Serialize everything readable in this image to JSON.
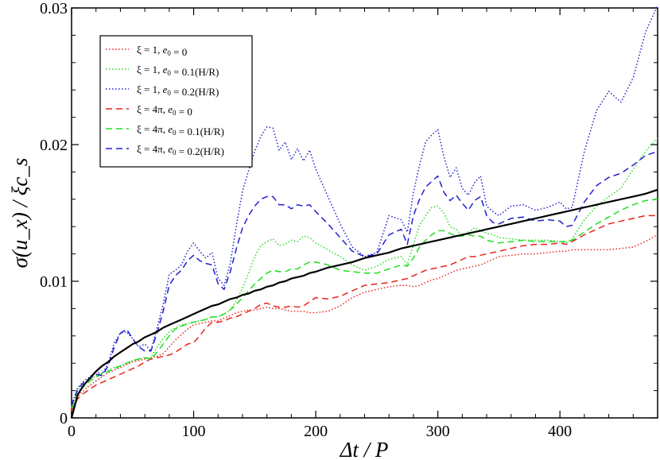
{
  "chart_data": {
    "type": "line",
    "xlabel": "Δt / P",
    "ylabel": "σ(u_x) / ξc_s",
    "xlim": [
      0,
      480
    ],
    "ylim": [
      0,
      0.03
    ],
    "x_ticks": [
      0,
      100,
      200,
      300,
      400
    ],
    "x_tick_labels": [
      "0",
      "100",
      "200",
      "300",
      "400"
    ],
    "y_ticks": [
      0,
      0.01,
      0.02,
      0.03
    ],
    "y_tick_labels": [
      "0",
      "0.01",
      "0.02",
      "0.03"
    ],
    "legend_position": "top-left",
    "x": [
      0,
      5,
      10,
      15,
      20,
      25,
      30,
      35,
      40,
      45,
      50,
      55,
      60,
      65,
      70,
      75,
      80,
      85,
      90,
      95,
      100,
      105,
      110,
      115,
      120,
      125,
      130,
      135,
      140,
      145,
      150,
      155,
      160,
      165,
      170,
      175,
      180,
      185,
      190,
      195,
      200,
      210,
      220,
      230,
      240,
      250,
      260,
      270,
      275,
      280,
      285,
      290,
      295,
      300,
      305,
      310,
      315,
      320,
      325,
      330,
      335,
      340,
      345,
      350,
      360,
      370,
      380,
      390,
      400,
      405,
      410,
      420,
      430,
      440,
      450,
      460,
      470,
      480
    ],
    "series": [
      {
        "name": "ξ = 1, e0 = 0",
        "line_style": "dotted",
        "color": "#e8231c",
        "legend": {
          "xi": "1",
          "e0": "0"
        },
        "values": [
          0.0006,
          0.0016,
          0.002,
          0.0024,
          0.0027,
          0.003,
          0.0033,
          0.0035,
          0.0037,
          0.0039,
          0.0041,
          0.0042,
          0.0043,
          0.0044,
          0.0045,
          0.0047,
          0.0052,
          0.0057,
          0.0061,
          0.0065,
          0.0068,
          0.0069,
          0.007,
          0.0071,
          0.0071,
          0.0073,
          0.0075,
          0.0077,
          0.0078,
          0.0079,
          0.0079,
          0.008,
          0.0081,
          0.008,
          0.008,
          0.0079,
          0.0078,
          0.0078,
          0.0078,
          0.0077,
          0.0077,
          0.0078,
          0.0082,
          0.0088,
          0.0092,
          0.0094,
          0.0096,
          0.0097,
          0.0097,
          0.0096,
          0.0097,
          0.0099,
          0.0101,
          0.0102,
          0.0104,
          0.0106,
          0.0108,
          0.0109,
          0.011,
          0.0111,
          0.0112,
          0.0114,
          0.0116,
          0.0118,
          0.0119,
          0.012,
          0.012,
          0.0121,
          0.0122,
          0.0122,
          0.0123,
          0.0123,
          0.0123,
          0.0123,
          0.0124,
          0.0125,
          0.0129,
          0.0134
        ]
      },
      {
        "name": "ξ = 1, e0 = 0.1(H/R)",
        "line_style": "dotted",
        "color": "#22dd22",
        "legend": {
          "xi": "1",
          "e0": "0.1(H/R)"
        },
        "values": [
          0.0008,
          0.002,
          0.0025,
          0.0028,
          0.0031,
          0.0033,
          0.0035,
          0.0037,
          0.0038,
          0.004,
          0.0042,
          0.0043,
          0.0044,
          0.0044,
          0.0052,
          0.0058,
          0.0063,
          0.0066,
          0.0068,
          0.0069,
          0.007,
          0.0071,
          0.0072,
          0.0074,
          0.0074,
          0.0076,
          0.0079,
          0.0086,
          0.0095,
          0.0106,
          0.0118,
          0.0126,
          0.0129,
          0.0131,
          0.0126,
          0.0127,
          0.013,
          0.0129,
          0.0133,
          0.0132,
          0.0128,
          0.0123,
          0.0118,
          0.0112,
          0.0108,
          0.0111,
          0.0116,
          0.0118,
          0.0112,
          0.0127,
          0.0141,
          0.0148,
          0.0154,
          0.0155,
          0.015,
          0.014,
          0.0138,
          0.0133,
          0.0136,
          0.0139,
          0.0137,
          0.0135,
          0.0134,
          0.0132,
          0.0131,
          0.013,
          0.013,
          0.013,
          0.0129,
          0.0128,
          0.0131,
          0.0145,
          0.0155,
          0.0162,
          0.0168,
          0.0182,
          0.0195,
          0.0205
        ]
      },
      {
        "name": "ξ = 1, e0 = 0.2(H/R)",
        "line_style": "dotted",
        "color": "#2020d0",
        "legend": {
          "xi": "1",
          "e0": "0.2(H/R)"
        },
        "values": [
          0.001,
          0.0022,
          0.0027,
          0.003,
          0.0034,
          0.0032,
          0.004,
          0.0055,
          0.0062,
          0.0063,
          0.0058,
          0.0052,
          0.0054,
          0.0049,
          0.0066,
          0.0083,
          0.0105,
          0.0108,
          0.0112,
          0.0122,
          0.0128,
          0.0122,
          0.0117,
          0.0121,
          0.0102,
          0.0097,
          0.0113,
          0.0141,
          0.0166,
          0.0181,
          0.0195,
          0.0206,
          0.0213,
          0.0212,
          0.0196,
          0.0202,
          0.0189,
          0.0197,
          0.0188,
          0.0196,
          0.0182,
          0.0162,
          0.0142,
          0.0125,
          0.0118,
          0.0121,
          0.0148,
          0.0145,
          0.0136,
          0.0165,
          0.0185,
          0.0202,
          0.0207,
          0.0211,
          0.0191,
          0.0176,
          0.0183,
          0.0168,
          0.0163,
          0.0172,
          0.0177,
          0.0155,
          0.0151,
          0.0148,
          0.0155,
          0.0156,
          0.0152,
          0.0154,
          0.0158,
          0.0153,
          0.0154,
          0.0195,
          0.0225,
          0.0239,
          0.0231,
          0.0249,
          0.0282,
          0.0302
        ]
      },
      {
        "name": "ξ = 4π, e0 = 0",
        "line_style": "dashed",
        "color": "#e8231c",
        "legend": {
          "xi": "4π",
          "e0": "0"
        },
        "values": [
          0.0005,
          0.0014,
          0.0018,
          0.0021,
          0.0024,
          0.0026,
          0.0028,
          0.003,
          0.0032,
          0.0034,
          0.0036,
          0.0038,
          0.0041,
          0.0043,
          0.0044,
          0.0045,
          0.0046,
          0.0048,
          0.0051,
          0.0054,
          0.0055,
          0.006,
          0.0066,
          0.007,
          0.007,
          0.0071,
          0.0073,
          0.0074,
          0.0076,
          0.0078,
          0.008,
          0.0083,
          0.0084,
          0.0082,
          0.0081,
          0.0081,
          0.0082,
          0.0081,
          0.0082,
          0.0085,
          0.0088,
          0.0087,
          0.0089,
          0.0093,
          0.0097,
          0.0098,
          0.0099,
          0.0101,
          0.0102,
          0.0104,
          0.0106,
          0.0108,
          0.0109,
          0.011,
          0.0111,
          0.0112,
          0.0114,
          0.0116,
          0.0118,
          0.0118,
          0.0119,
          0.012,
          0.0121,
          0.0122,
          0.0124,
          0.0126,
          0.0127,
          0.0127,
          0.0128,
          0.0127,
          0.0129,
          0.0134,
          0.0138,
          0.0142,
          0.0144,
          0.0146,
          0.0148,
          0.0148
        ]
      },
      {
        "name": "ξ = 4π, e0 = 0.1(H/R)",
        "line_style": "dashed",
        "color": "#22dd22",
        "legend": {
          "xi": "4π",
          "e0": "0.1(H/R)"
        },
        "values": [
          0.0007,
          0.0018,
          0.0023,
          0.0027,
          0.003,
          0.0032,
          0.0034,
          0.0036,
          0.0038,
          0.004,
          0.0042,
          0.0043,
          0.0044,
          0.0043,
          0.0048,
          0.0054,
          0.006,
          0.0065,
          0.0067,
          0.0069,
          0.007,
          0.0071,
          0.0072,
          0.0074,
          0.0074,
          0.0076,
          0.0079,
          0.0083,
          0.0088,
          0.0093,
          0.0098,
          0.0102,
          0.0106,
          0.0108,
          0.0107,
          0.0107,
          0.0109,
          0.0109,
          0.0112,
          0.0114,
          0.0114,
          0.0112,
          0.0108,
          0.0107,
          0.0106,
          0.0106,
          0.0109,
          0.0112,
          0.0111,
          0.0117,
          0.0125,
          0.013,
          0.0134,
          0.0137,
          0.0137,
          0.0135,
          0.0133,
          0.0133,
          0.0134,
          0.0133,
          0.0133,
          0.013,
          0.0129,
          0.0128,
          0.0129,
          0.013,
          0.0129,
          0.0129,
          0.0129,
          0.0129,
          0.013,
          0.0136,
          0.0142,
          0.0147,
          0.0152,
          0.0156,
          0.0159,
          0.016
        ]
      },
      {
        "name": "ξ = 4π, e0 = 0.2(H/R)",
        "line_style": "dashed",
        "color": "#2020d0",
        "legend": {
          "xi": "4π",
          "e0": "0.2(H/R)"
        },
        "values": [
          0.0009,
          0.0021,
          0.0026,
          0.0029,
          0.0032,
          0.0031,
          0.0038,
          0.0052,
          0.0062,
          0.0065,
          0.0058,
          0.0052,
          0.0049,
          0.0049,
          0.0062,
          0.0078,
          0.0097,
          0.0104,
          0.0108,
          0.0115,
          0.0119,
          0.0115,
          0.0113,
          0.0112,
          0.0098,
          0.0094,
          0.0107,
          0.0124,
          0.0139,
          0.0148,
          0.0155,
          0.016,
          0.0162,
          0.0162,
          0.0156,
          0.0156,
          0.0153,
          0.0156,
          0.0155,
          0.0156,
          0.0151,
          0.0142,
          0.0132,
          0.0122,
          0.0118,
          0.012,
          0.0134,
          0.0138,
          0.0127,
          0.0148,
          0.016,
          0.0169,
          0.0173,
          0.0177,
          0.0165,
          0.0159,
          0.0163,
          0.0157,
          0.0152,
          0.0159,
          0.0162,
          0.0148,
          0.0143,
          0.0142,
          0.0146,
          0.0147,
          0.0144,
          0.0145,
          0.0144,
          0.014,
          0.0141,
          0.0158,
          0.017,
          0.0176,
          0.0179,
          0.0185,
          0.0192,
          0.0195
        ]
      },
      {
        "name": "fit",
        "line_style": "solid",
        "color": "#000000",
        "in_legend": false,
        "values": [
          0.0,
          0.0017,
          0.0024,
          0.0029,
          0.0034,
          0.0038,
          0.0041,
          0.0045,
          0.0048,
          0.0051,
          0.0054,
          0.0056,
          0.0059,
          0.0061,
          0.0063,
          0.0066,
          0.0068,
          0.007,
          0.0072,
          0.0074,
          0.0076,
          0.0078,
          0.008,
          0.0082,
          0.0083,
          0.0085,
          0.0087,
          0.0088,
          0.009,
          0.0091,
          0.0093,
          0.0094,
          0.0096,
          0.0097,
          0.0099,
          0.01,
          0.0102,
          0.0103,
          0.0104,
          0.0106,
          0.0107,
          0.011,
          0.0112,
          0.0114,
          0.0117,
          0.0119,
          0.0121,
          0.0124,
          0.0125,
          0.0126,
          0.0127,
          0.0128,
          0.0129,
          0.013,
          0.0131,
          0.0132,
          0.0133,
          0.0134,
          0.0135,
          0.0136,
          0.0137,
          0.0138,
          0.0139,
          0.014,
          0.0142,
          0.0144,
          0.0146,
          0.0148,
          0.015,
          0.0151,
          0.0152,
          0.0154,
          0.0156,
          0.0158,
          0.016,
          0.0162,
          0.0164,
          0.0167
        ]
      }
    ]
  }
}
